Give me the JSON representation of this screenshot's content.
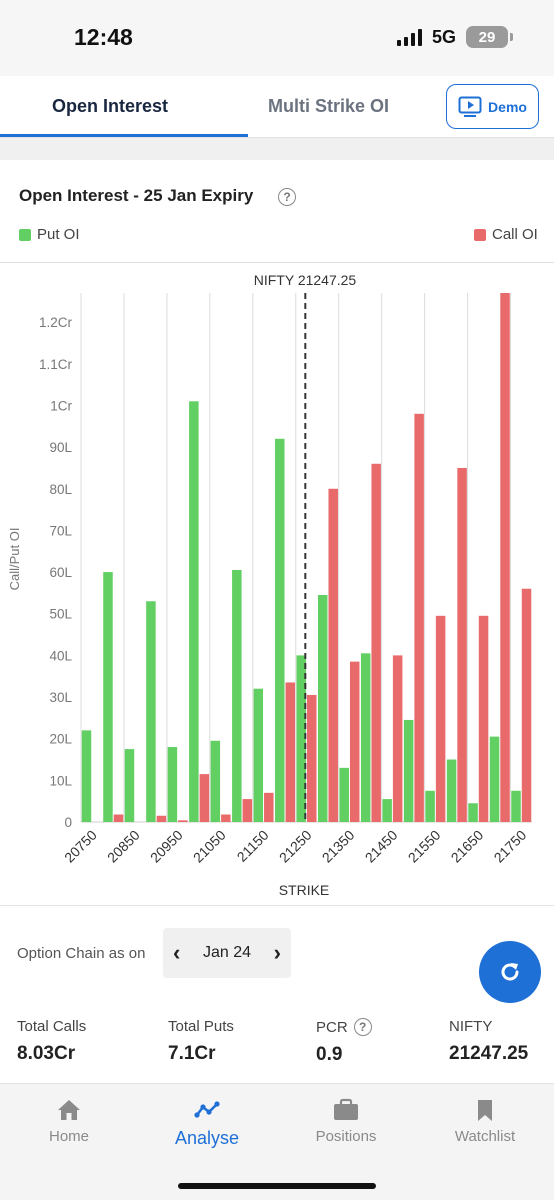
{
  "status": {
    "time": "12:48",
    "network": "5G",
    "battery": "29"
  },
  "tabs": {
    "open_interest": "Open Interest",
    "multi_strike": "Multi Strike OI",
    "demo": "Demo"
  },
  "card": {
    "title": "Open Interest - 25 Jan Expiry",
    "help": "?"
  },
  "legend": {
    "put": "Put OI",
    "call": "Call OI"
  },
  "colors": {
    "put": "#62cf62",
    "call": "#e86a6a",
    "accent": "#1e6fd6"
  },
  "chart_data": {
    "type": "bar",
    "title": "NIFTY 21247.25",
    "xlabel": "STRIKE",
    "ylabel": "Call/Put OI",
    "spot": 21247.25,
    "ylim": [
      0,
      12700000
    ],
    "y_ticks": [
      {
        "value": 0,
        "label": "0"
      },
      {
        "value": 1000000,
        "label": "10L"
      },
      {
        "value": 2000000,
        "label": "20L"
      },
      {
        "value": 3000000,
        "label": "30L"
      },
      {
        "value": 4000000,
        "label": "40L"
      },
      {
        "value": 5000000,
        "label": "50L"
      },
      {
        "value": 6000000,
        "label": "60L"
      },
      {
        "value": 7000000,
        "label": "70L"
      },
      {
        "value": 8000000,
        "label": "80L"
      },
      {
        "value": 9000000,
        "label": "90L"
      },
      {
        "value": 10000000,
        "label": "1Cr"
      },
      {
        "value": 11000000,
        "label": "1.1Cr"
      },
      {
        "value": 12000000,
        "label": "1.2Cr"
      }
    ],
    "categories": [
      20750,
      20800,
      20850,
      20900,
      20950,
      21000,
      21050,
      21100,
      21150,
      21200,
      21250,
      21300,
      21350,
      21400,
      21450,
      21500,
      21550,
      21600,
      21650,
      21700,
      21750
    ],
    "x_tick_labels": [
      "20750",
      "20850",
      "20950",
      "21050",
      "21150",
      "21250",
      "21350",
      "21450",
      "21550",
      "21650",
      "21750"
    ],
    "series": [
      {
        "name": "Put OI",
        "values": [
          2200000,
          6000000,
          1750000,
          5300000,
          1800000,
          10100000,
          1950000,
          6050000,
          3200000,
          9200000,
          4000000,
          5450000,
          1300000,
          4050000,
          550000,
          2450000,
          750000,
          1500000,
          450000,
          2050000,
          750000
        ]
      },
      {
        "name": "Call OI",
        "values": [
          0,
          180000,
          0,
          150000,
          40000,
          1150000,
          180000,
          550000,
          700000,
          3350000,
          3050000,
          8000000,
          3850000,
          8600000,
          4000000,
          9800000,
          4950000,
          8500000,
          4950000,
          12700000,
          5600000
        ]
      }
    ]
  },
  "option_chain": {
    "label": "Option Chain as on",
    "date": "Jan 24"
  },
  "stats": {
    "total_calls_label": "Total Calls",
    "total_calls": "8.03Cr",
    "total_puts_label": "Total Puts",
    "total_puts": "7.1Cr",
    "pcr_label": "PCR",
    "pcr": "0.9",
    "nifty_label": "NIFTY",
    "nifty": "21247.25"
  },
  "nav": {
    "home": "Home",
    "analyse": "Analyse",
    "positions": "Positions",
    "watchlist": "Watchlist"
  }
}
